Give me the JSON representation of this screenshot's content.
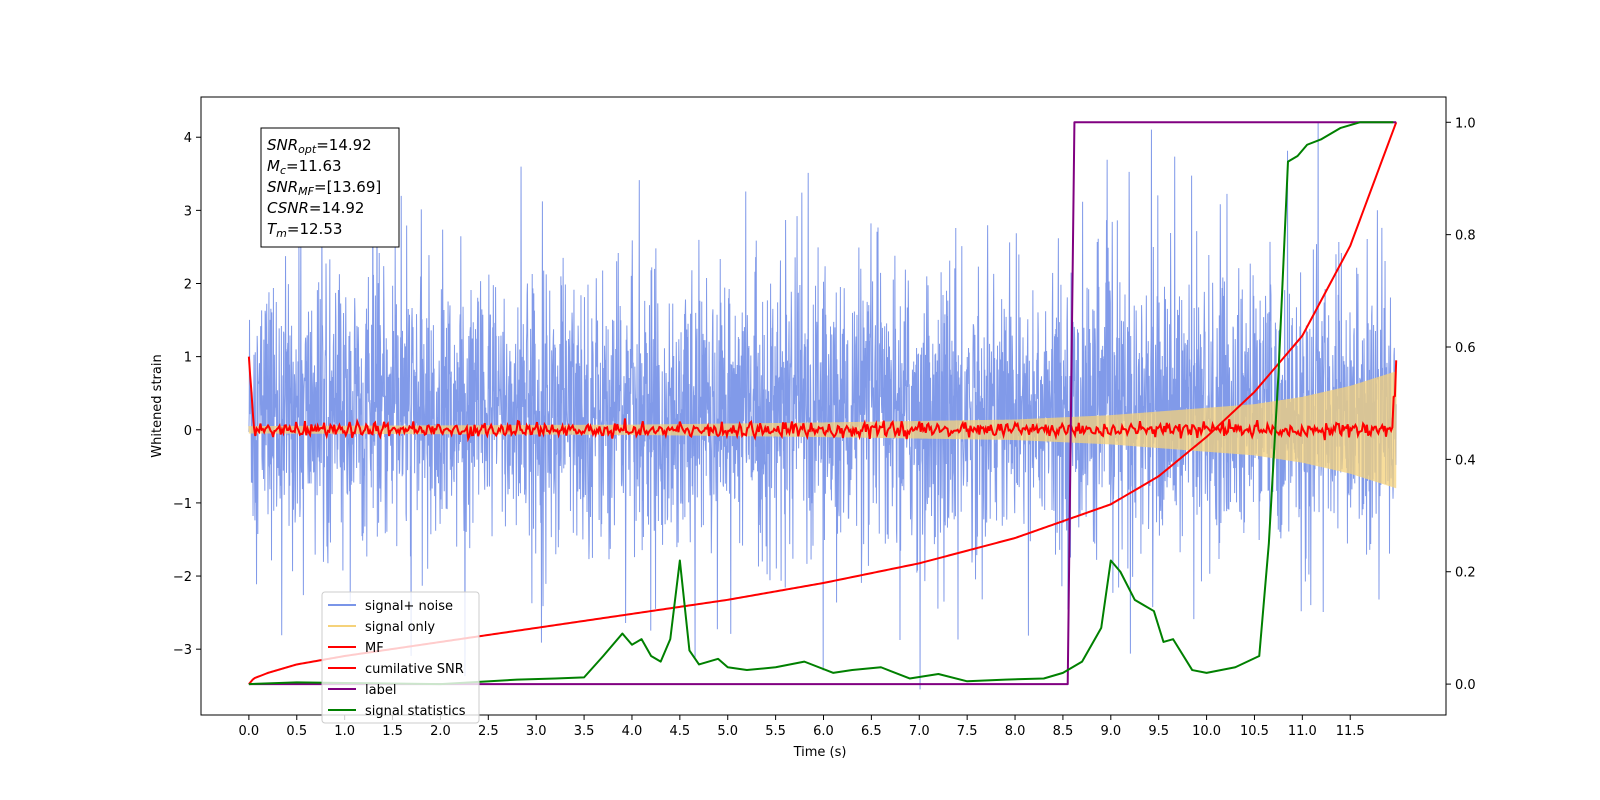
{
  "chart_data": {
    "type": "line",
    "xlabel": "Time (s)",
    "ylabel": "Whitened strain",
    "xlim": [
      -0.5,
      12.5
    ],
    "ylim": [
      -3.9,
      4.55
    ],
    "y2lim": [
      -0.055,
      1.045
    ],
    "xticks": [
      "0.0",
      "0.5",
      "1.0",
      "1.5",
      "2.0",
      "2.5",
      "3.0",
      "3.5",
      "4.0",
      "4.5",
      "5.0",
      "5.5",
      "6.0",
      "6.5",
      "7.0",
      "7.5",
      "8.0",
      "8.5",
      "9.0",
      "9.5",
      "10.0",
      "10.5",
      "11.0",
      "11.5"
    ],
    "yticks": [
      "−3",
      "−2",
      "−1",
      "0",
      "1",
      "2",
      "3",
      "4"
    ],
    "y2ticks": [
      "0.0",
      "0.2",
      "0.4",
      "0.6",
      "0.8",
      "1.0"
    ],
    "annotation": {
      "lines": [
        {
          "main": "SNR",
          "sub": "opt",
          "value": "=14.92"
        },
        {
          "main": "M",
          "sub": "c",
          "value": "=11.63"
        },
        {
          "main": "SNR",
          "sub": "MF",
          "value": "=[13.69]"
        },
        {
          "main": "CSNR",
          "sub": "",
          "value": "=14.92"
        },
        {
          "main": "T",
          "sub": "m",
          "value": "=12.53"
        }
      ]
    },
    "legend": {
      "position": "lower-left",
      "entries": [
        {
          "label": "signal+ noise",
          "color": "#7a95e8"
        },
        {
          "label": "signal only",
          "color": "#f5d27a"
        },
        {
          "label": "MF",
          "color": "#ff0000"
        },
        {
          "label": "cumilative SNR",
          "color": "#ff0000"
        },
        {
          "label": "label",
          "color": "#800080"
        },
        {
          "label": "signal statistics",
          "color": "#008000"
        }
      ]
    },
    "series": [
      {
        "name": "signal+ noise",
        "axis": "left",
        "color": "#7a95e8",
        "description_values": {
          "x_range": [
            0.0,
            11.98
          ],
          "amplitude_envelope": [
            -3.5,
            4.2
          ],
          "typical_band": [
            -1.5,
            2.0
          ]
        }
      },
      {
        "name": "signal only",
        "axis": "left",
        "color": "#f5d27a",
        "envelope_x": [
          0.0,
          2.0,
          4.0,
          6.0,
          8.0,
          9.0,
          10.0,
          10.5,
          11.0,
          11.5,
          11.98
        ],
        "envelope_y": [
          0.05,
          0.06,
          0.07,
          0.1,
          0.14,
          0.2,
          0.3,
          0.35,
          0.45,
          0.6,
          0.8
        ]
      },
      {
        "name": "MF",
        "axis": "left",
        "color": "#ff0000",
        "x_range": [
          0.0,
          11.98
        ],
        "start_value": 1.0,
        "end_value": 0.95,
        "baseline": 0.0,
        "ripple": 0.08
      },
      {
        "name": "cumilative SNR",
        "axis": "right",
        "color": "#ff0000",
        "x": [
          0.0,
          0.05,
          0.2,
          0.5,
          1.0,
          2.0,
          3.0,
          4.0,
          5.0,
          6.0,
          7.0,
          8.0,
          8.5,
          9.0,
          9.5,
          10.0,
          10.5,
          11.0,
          11.5,
          11.98
        ],
        "y": [
          0.0,
          0.01,
          0.02,
          0.035,
          0.05,
          0.075,
          0.1,
          0.125,
          0.15,
          0.18,
          0.215,
          0.26,
          0.29,
          0.32,
          0.37,
          0.44,
          0.52,
          0.62,
          0.78,
          1.0
        ]
      },
      {
        "name": "label",
        "axis": "right",
        "color": "#800080",
        "x": [
          0.0,
          8.55,
          8.62,
          11.98
        ],
        "y": [
          0.0,
          0.0,
          1.0,
          1.0
        ]
      },
      {
        "name": "signal statistics",
        "axis": "right",
        "color": "#008000",
        "x": [
          0.0,
          0.5,
          1.0,
          2.0,
          2.8,
          3.2,
          3.5,
          3.7,
          3.9,
          4.0,
          4.1,
          4.2,
          4.3,
          4.4,
          4.5,
          4.6,
          4.7,
          4.9,
          5.0,
          5.2,
          5.5,
          5.8,
          6.1,
          6.3,
          6.6,
          6.9,
          7.2,
          7.5,
          7.9,
          8.3,
          8.5,
          8.7,
          8.9,
          9.0,
          9.1,
          9.25,
          9.35,
          9.45,
          9.55,
          9.65,
          9.85,
          10.0,
          10.3,
          10.55,
          10.65,
          10.75,
          10.85,
          10.95,
          11.05,
          11.2,
          11.4,
          11.6,
          11.8,
          11.95
        ],
        "y": [
          0.0,
          0.003,
          0.002,
          0.0,
          0.008,
          0.01,
          0.012,
          0.05,
          0.09,
          0.07,
          0.08,
          0.05,
          0.04,
          0.08,
          0.22,
          0.06,
          0.035,
          0.045,
          0.03,
          0.025,
          0.03,
          0.04,
          0.02,
          0.025,
          0.03,
          0.01,
          0.018,
          0.005,
          0.008,
          0.01,
          0.02,
          0.04,
          0.1,
          0.22,
          0.2,
          0.15,
          0.14,
          0.13,
          0.075,
          0.08,
          0.025,
          0.02,
          0.03,
          0.05,
          0.25,
          0.55,
          0.93,
          0.94,
          0.96,
          0.97,
          0.99,
          1.0,
          1.0,
          1.0
        ]
      }
    ]
  }
}
